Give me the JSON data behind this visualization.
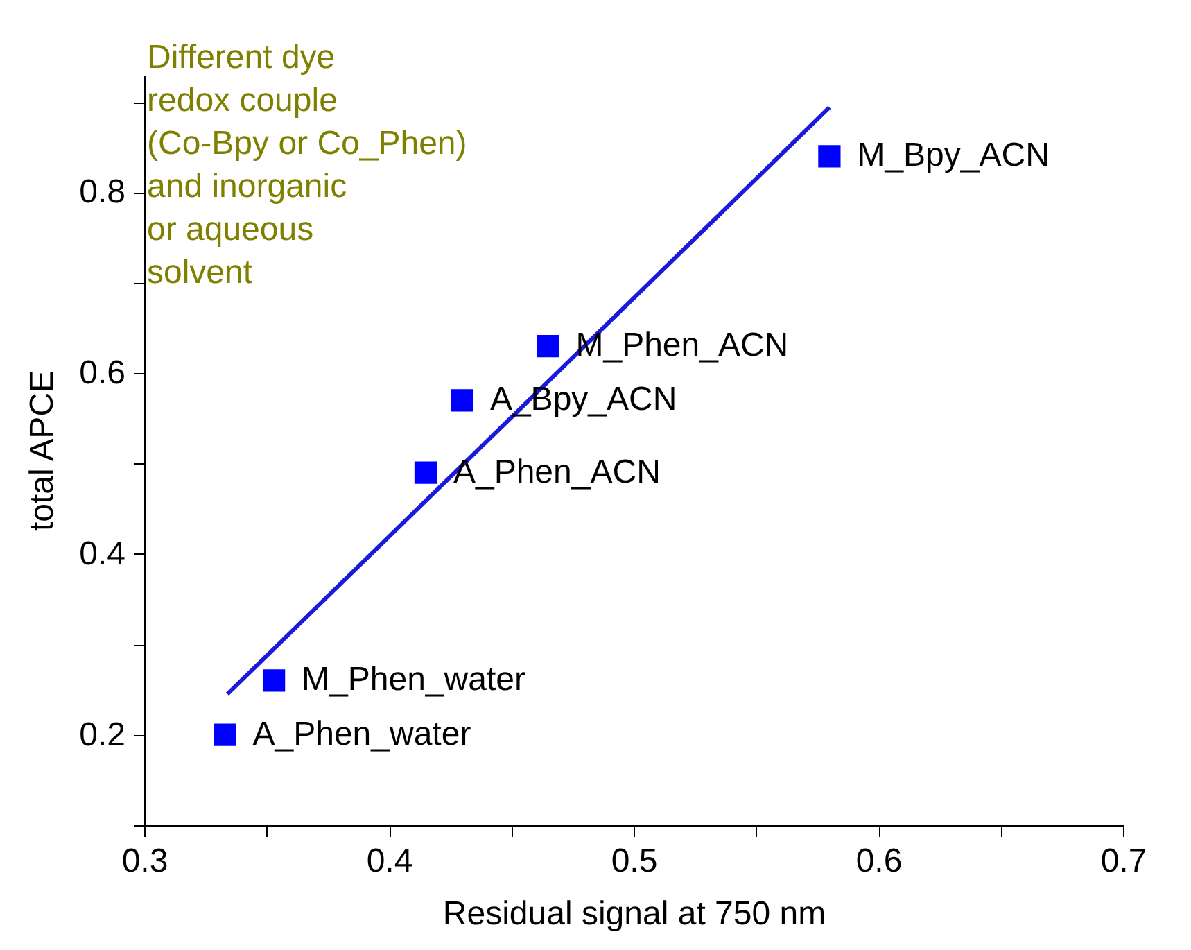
{
  "chart_data": {
    "type": "scatter",
    "xlabel": "Residual signal at 750 nm",
    "ylabel": "total APCE",
    "x": [
      0.333,
      0.353,
      0.415,
      0.43,
      0.465,
      0.58
    ],
    "series": [
      {
        "color": "#0000ff",
        "marker": "square",
        "values": [
          0.2,
          0.26,
          0.49,
          0.57,
          0.63,
          0.84
        ]
      },
      {
        "type": "line",
        "color": "#1a1adc",
        "x": [
          0.334,
          0.58
        ],
        "values": [
          0.245,
          0.894
        ]
      }
    ],
    "grid": false,
    "xlim": [
      0.3,
      0.7
    ],
    "xticks": [
      0.3,
      {
        "value": 0.35,
        "label": null
      },
      0.4,
      {
        "value": 0.45,
        "label": null
      },
      0.5,
      {
        "value": 0.55,
        "label": null
      },
      0.6,
      {
        "value": 0.65,
        "label": null
      },
      0.7
    ],
    "ylim": [
      0.1,
      0.93
    ],
    "yticks": [
      {
        "value": 0.1,
        "label": null
      },
      0.2,
      {
        "value": 0.3,
        "label": null
      },
      0.4,
      {
        "value": 0.5,
        "label": null
      },
      0.6,
      {
        "value": 0.7,
        "label": null
      },
      0.8,
      {
        "value": 0.9,
        "label": null
      }
    ],
    "annotations": [
      "Different dye\nredox couple\n(Co-Bpy or Co_Phen)\nand inorganic\nor aqueous\nsolvent",
      {
        "text": "A_Phen_water",
        "x": 0.333,
        "y": 0.2
      },
      {
        "text": "M_Phen_water",
        "x": 0.353,
        "y": 0.26
      },
      {
        "text": "A_Phen_ACN",
        "x": 0.415,
        "y": 0.49
      },
      {
        "text": "A_Bpy_ACN",
        "x": 0.43,
        "y": 0.57
      },
      {
        "text": "M_Phen_ACN",
        "x": 0.465,
        "y": 0.63
      },
      {
        "text": "M_Bpy_ACN",
        "x": 0.58,
        "y": 0.84
      }
    ]
  }
}
